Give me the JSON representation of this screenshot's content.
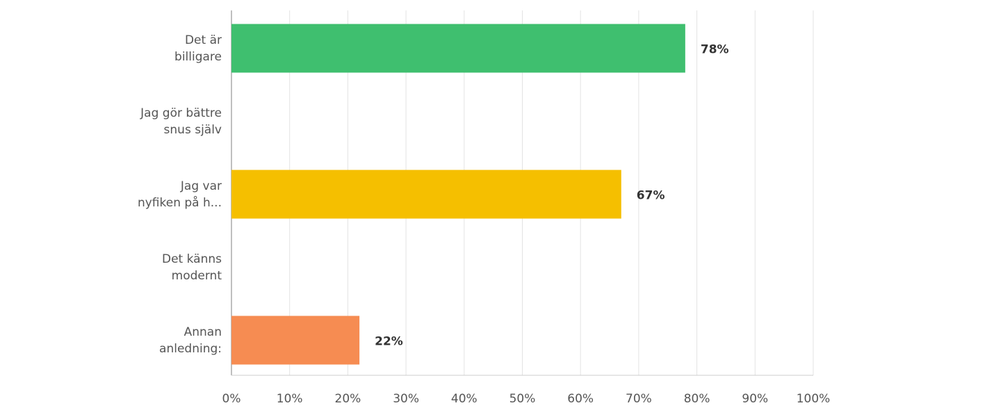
{
  "chart_data": {
    "type": "hbar",
    "categories": [
      "Det är\nbilligare",
      "Jag gör bättre\nsnus själv",
      "Jag var\nnyfiken på h...",
      "Det känns\nmodernt",
      "Annan\nanledning:"
    ],
    "values": [
      78,
      null,
      67,
      null,
      22
    ],
    "value_labels": [
      "78%",
      null,
      "67%",
      null,
      "22%"
    ],
    "colors": [
      "#3fbf6f",
      null,
      "#f5bf00",
      null,
      "#f68c52"
    ],
    "xlim": [
      0,
      100
    ],
    "xticks": [
      {
        "value": 0,
        "label": "0%"
      },
      {
        "value": 10,
        "label": "10%"
      },
      {
        "value": 20,
        "label": "20%"
      },
      {
        "value": 30,
        "label": "30%"
      },
      {
        "value": 40,
        "label": "40%"
      },
      {
        "value": 50,
        "label": "50%"
      },
      {
        "value": 60,
        "label": "60%"
      },
      {
        "value": 70,
        "label": "70%"
      },
      {
        "value": 80,
        "label": "80%"
      },
      {
        "value": 90,
        "label": "90%"
      },
      {
        "value": 100,
        "label": "100%"
      }
    ],
    "grid": true
  }
}
